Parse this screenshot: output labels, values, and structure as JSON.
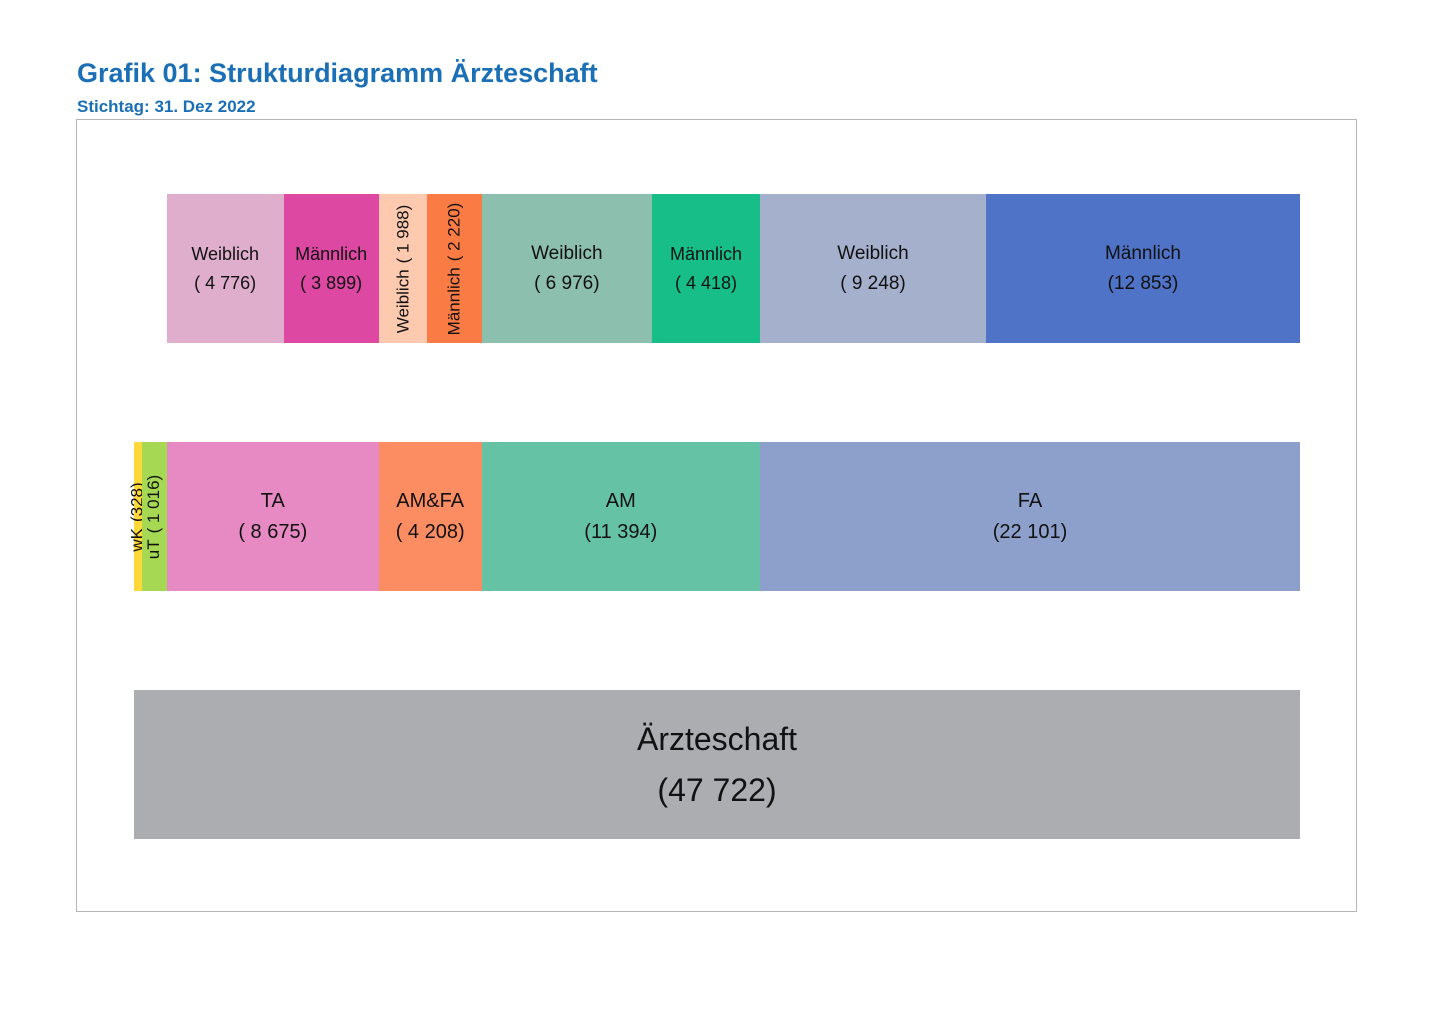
{
  "title": "Grafik 01: Strukturdiagramm Ärzteschaft",
  "subtitle": "Stichtag: 31. Dez 2022",
  "chart_data": {
    "type": "bar",
    "subtype": "stacked structure diagram (icicle)",
    "levels": [
      {
        "name": "",
        "segments": [
          {
            "label": "Ärzteschaft",
            "value": 47722,
            "display": "(47 722)",
            "color": "#acadb0"
          }
        ]
      },
      {
        "name": "",
        "segments": [
          {
            "label": "wK",
            "value": 328,
            "display": "(328)",
            "color": "#ffd93a"
          },
          {
            "label": "uT",
            "value": 1016,
            "display": "( 1 016)",
            "color": "#a6d854"
          },
          {
            "label": "TA",
            "value": 8675,
            "display": "( 8 675)",
            "color": "#e78ac3"
          },
          {
            "label": "AM&FA",
            "value": 4208,
            "display": "( 4 208)",
            "color": "#fc8d62"
          },
          {
            "label": "AM",
            "value": 11394,
            "display": "(11 394)",
            "color": "#66c2a5"
          },
          {
            "label": "FA",
            "value": 22101,
            "display": "(22 101)",
            "color": "#8da0cb"
          }
        ]
      },
      {
        "name": "",
        "segments": [
          {
            "label": "Weiblich",
            "value": 4776,
            "display": "( 4 776)",
            "color": "#dfaecc",
            "parent": "TA"
          },
          {
            "label": "Männlich",
            "value": 3899,
            "display": "( 3 899)",
            "color": "#dd48a3",
            "parent": "TA"
          },
          {
            "label": "Weiblich",
            "value": 1988,
            "display": "( 1 988)",
            "color": "#fdcaaf",
            "parent": "AM&FA"
          },
          {
            "label": "Männlich",
            "value": 2220,
            "display": "( 2 220)",
            "color": "#fb7b45",
            "parent": "AM&FA"
          },
          {
            "label": "Weiblich",
            "value": 6976,
            "display": "( 6 976)",
            "color": "#8dbfae",
            "parent": "AM"
          },
          {
            "label": "Männlich",
            "value": 4418,
            "display": "( 4 418)",
            "color": "#17be88",
            "parent": "AM"
          },
          {
            "label": "Weiblich",
            "value": 9248,
            "display": "( 9 248)",
            "color": "#a5b0cc",
            "parent": "FA"
          },
          {
            "label": "Männlich",
            "value": 12853,
            "display": "(12 853)",
            "color": "#4f73c6",
            "parent": "FA"
          }
        ]
      }
    ]
  }
}
